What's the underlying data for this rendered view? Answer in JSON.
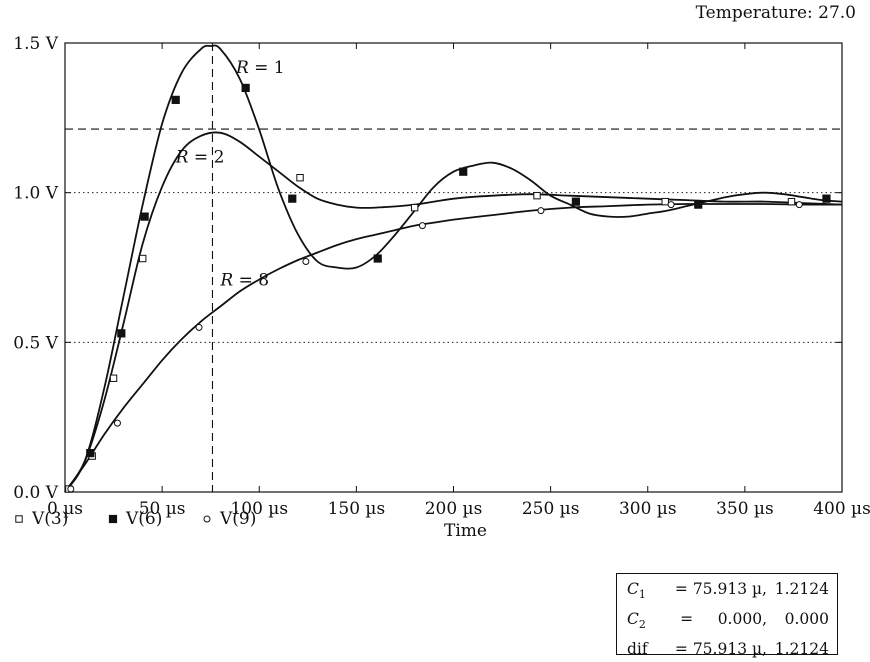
{
  "header": {
    "temperature": "Temperature: 27.0"
  },
  "chart_data": {
    "type": "line",
    "xlabel": "Time",
    "xlim": [
      0,
      400
    ],
    "ylim": [
      0,
      1.5
    ],
    "x_ticks": [
      {
        "value": 0,
        "label": "0 µs"
      },
      {
        "value": 50,
        "label": "50 µs"
      },
      {
        "value": 100,
        "label": "100 µs"
      },
      {
        "value": 150,
        "label": "150 µs"
      },
      {
        "value": 200,
        "label": "200 µs"
      },
      {
        "value": 250,
        "label": "250 µs"
      },
      {
        "value": 300,
        "label": "300 µs"
      },
      {
        "value": 350,
        "label": "350 µs"
      },
      {
        "value": 400,
        "label": "400 µs"
      }
    ],
    "y_ticks": [
      {
        "value": 0,
        "label": "0.0 V"
      },
      {
        "value": 0.5,
        "label": "0.5 V"
      },
      {
        "value": 1.0,
        "label": "1.0 V"
      },
      {
        "value": 1.5,
        "label": "1.5 V"
      }
    ],
    "grid": "dotted",
    "legend_position": "bottom-left",
    "cursor": {
      "x": 75.913,
      "y": 1.2124
    },
    "series": [
      {
        "name": "V(3)",
        "marker": "open-square",
        "curve_label": "R = 2",
        "x": [
          0,
          10,
          20,
          30,
          40,
          50,
          60,
          70,
          80,
          90,
          100,
          110,
          120,
          130,
          140,
          150,
          160,
          180,
          200,
          220,
          240,
          260,
          280,
          300,
          320,
          340,
          360,
          380,
          400
        ],
        "y": [
          0,
          0.1,
          0.3,
          0.56,
          0.83,
          1.02,
          1.14,
          1.19,
          1.2,
          1.17,
          1.12,
          1.07,
          1.02,
          0.98,
          0.96,
          0.95,
          0.95,
          0.96,
          0.98,
          0.99,
          0.995,
          0.99,
          0.985,
          0.98,
          0.975,
          0.97,
          0.97,
          0.965,
          0.96
        ],
        "markers": [
          [
            2,
            0.01
          ],
          [
            14,
            0.12
          ],
          [
            25,
            0.38
          ],
          [
            40,
            0.78
          ],
          [
            121,
            1.05
          ],
          [
            180,
            0.95
          ],
          [
            243,
            0.99
          ],
          [
            309,
            0.97
          ],
          [
            374,
            0.97
          ]
        ]
      },
      {
        "name": "V(6)",
        "marker": "filled-square",
        "curve_label": "R = 1",
        "x": [
          0,
          10,
          20,
          30,
          40,
          50,
          60,
          70,
          75,
          80,
          90,
          100,
          110,
          120,
          130,
          140,
          150,
          160,
          170,
          180,
          190,
          200,
          210,
          220,
          230,
          240,
          250,
          260,
          270,
          280,
          290,
          300,
          310,
          320,
          330,
          340,
          350,
          360,
          370,
          380,
          390,
          400
        ],
        "y": [
          0,
          0.1,
          0.34,
          0.65,
          0.96,
          1.23,
          1.4,
          1.48,
          1.49,
          1.48,
          1.38,
          1.21,
          1.01,
          0.86,
          0.77,
          0.75,
          0.75,
          0.79,
          0.86,
          0.94,
          1.02,
          1.07,
          1.09,
          1.1,
          1.08,
          1.04,
          0.99,
          0.96,
          0.93,
          0.92,
          0.92,
          0.93,
          0.94,
          0.955,
          0.97,
          0.985,
          0.995,
          1.0,
          0.995,
          0.985,
          0.975,
          0.97
        ],
        "markers": [
          [
            13,
            0.13
          ],
          [
            29,
            0.53
          ],
          [
            41,
            0.92
          ],
          [
            57,
            1.31
          ],
          [
            93,
            1.35
          ],
          [
            117,
            0.98
          ],
          [
            161,
            0.78
          ],
          [
            205,
            1.07
          ],
          [
            263,
            0.97
          ],
          [
            326,
            0.96
          ],
          [
            392,
            0.98
          ]
        ]
      },
      {
        "name": "V(9)",
        "marker": "open-circle",
        "curve_label": "R = 8",
        "x": [
          0,
          10,
          20,
          30,
          40,
          50,
          60,
          70,
          80,
          90,
          100,
          110,
          120,
          130,
          140,
          150,
          160,
          170,
          180,
          190,
          200,
          220,
          240,
          260,
          280,
          300,
          320,
          340,
          360,
          380,
          400
        ],
        "y": [
          0,
          0.09,
          0.19,
          0.28,
          0.36,
          0.44,
          0.51,
          0.57,
          0.62,
          0.67,
          0.71,
          0.745,
          0.775,
          0.8,
          0.825,
          0.845,
          0.86,
          0.875,
          0.89,
          0.9,
          0.91,
          0.925,
          0.94,
          0.95,
          0.955,
          0.96,
          0.962,
          0.962,
          0.962,
          0.96,
          0.96
        ],
        "markers": [
          [
            3,
            0.01
          ],
          [
            27,
            0.23
          ],
          [
            69,
            0.55
          ],
          [
            124,
            0.77
          ],
          [
            184,
            0.89
          ],
          [
            245,
            0.94
          ],
          [
            312,
            0.96
          ],
          [
            378,
            0.96
          ]
        ]
      }
    ]
  },
  "legend": {
    "items": [
      "V(3)",
      "V(6)",
      "V(9)"
    ]
  },
  "cursor_readout": {
    "rows": [
      {
        "label": "C",
        "sub": "1",
        "v1": " = 75.913 µ,",
        "v2": "1.2124"
      },
      {
        "label": "C",
        "sub": "2",
        "v1": " =     0.000,",
        "v2": "0.000"
      },
      {
        "label": "dif",
        "sub": "",
        "v1": " = 75.913 µ,",
        "v2": "1.2124"
      }
    ]
  }
}
